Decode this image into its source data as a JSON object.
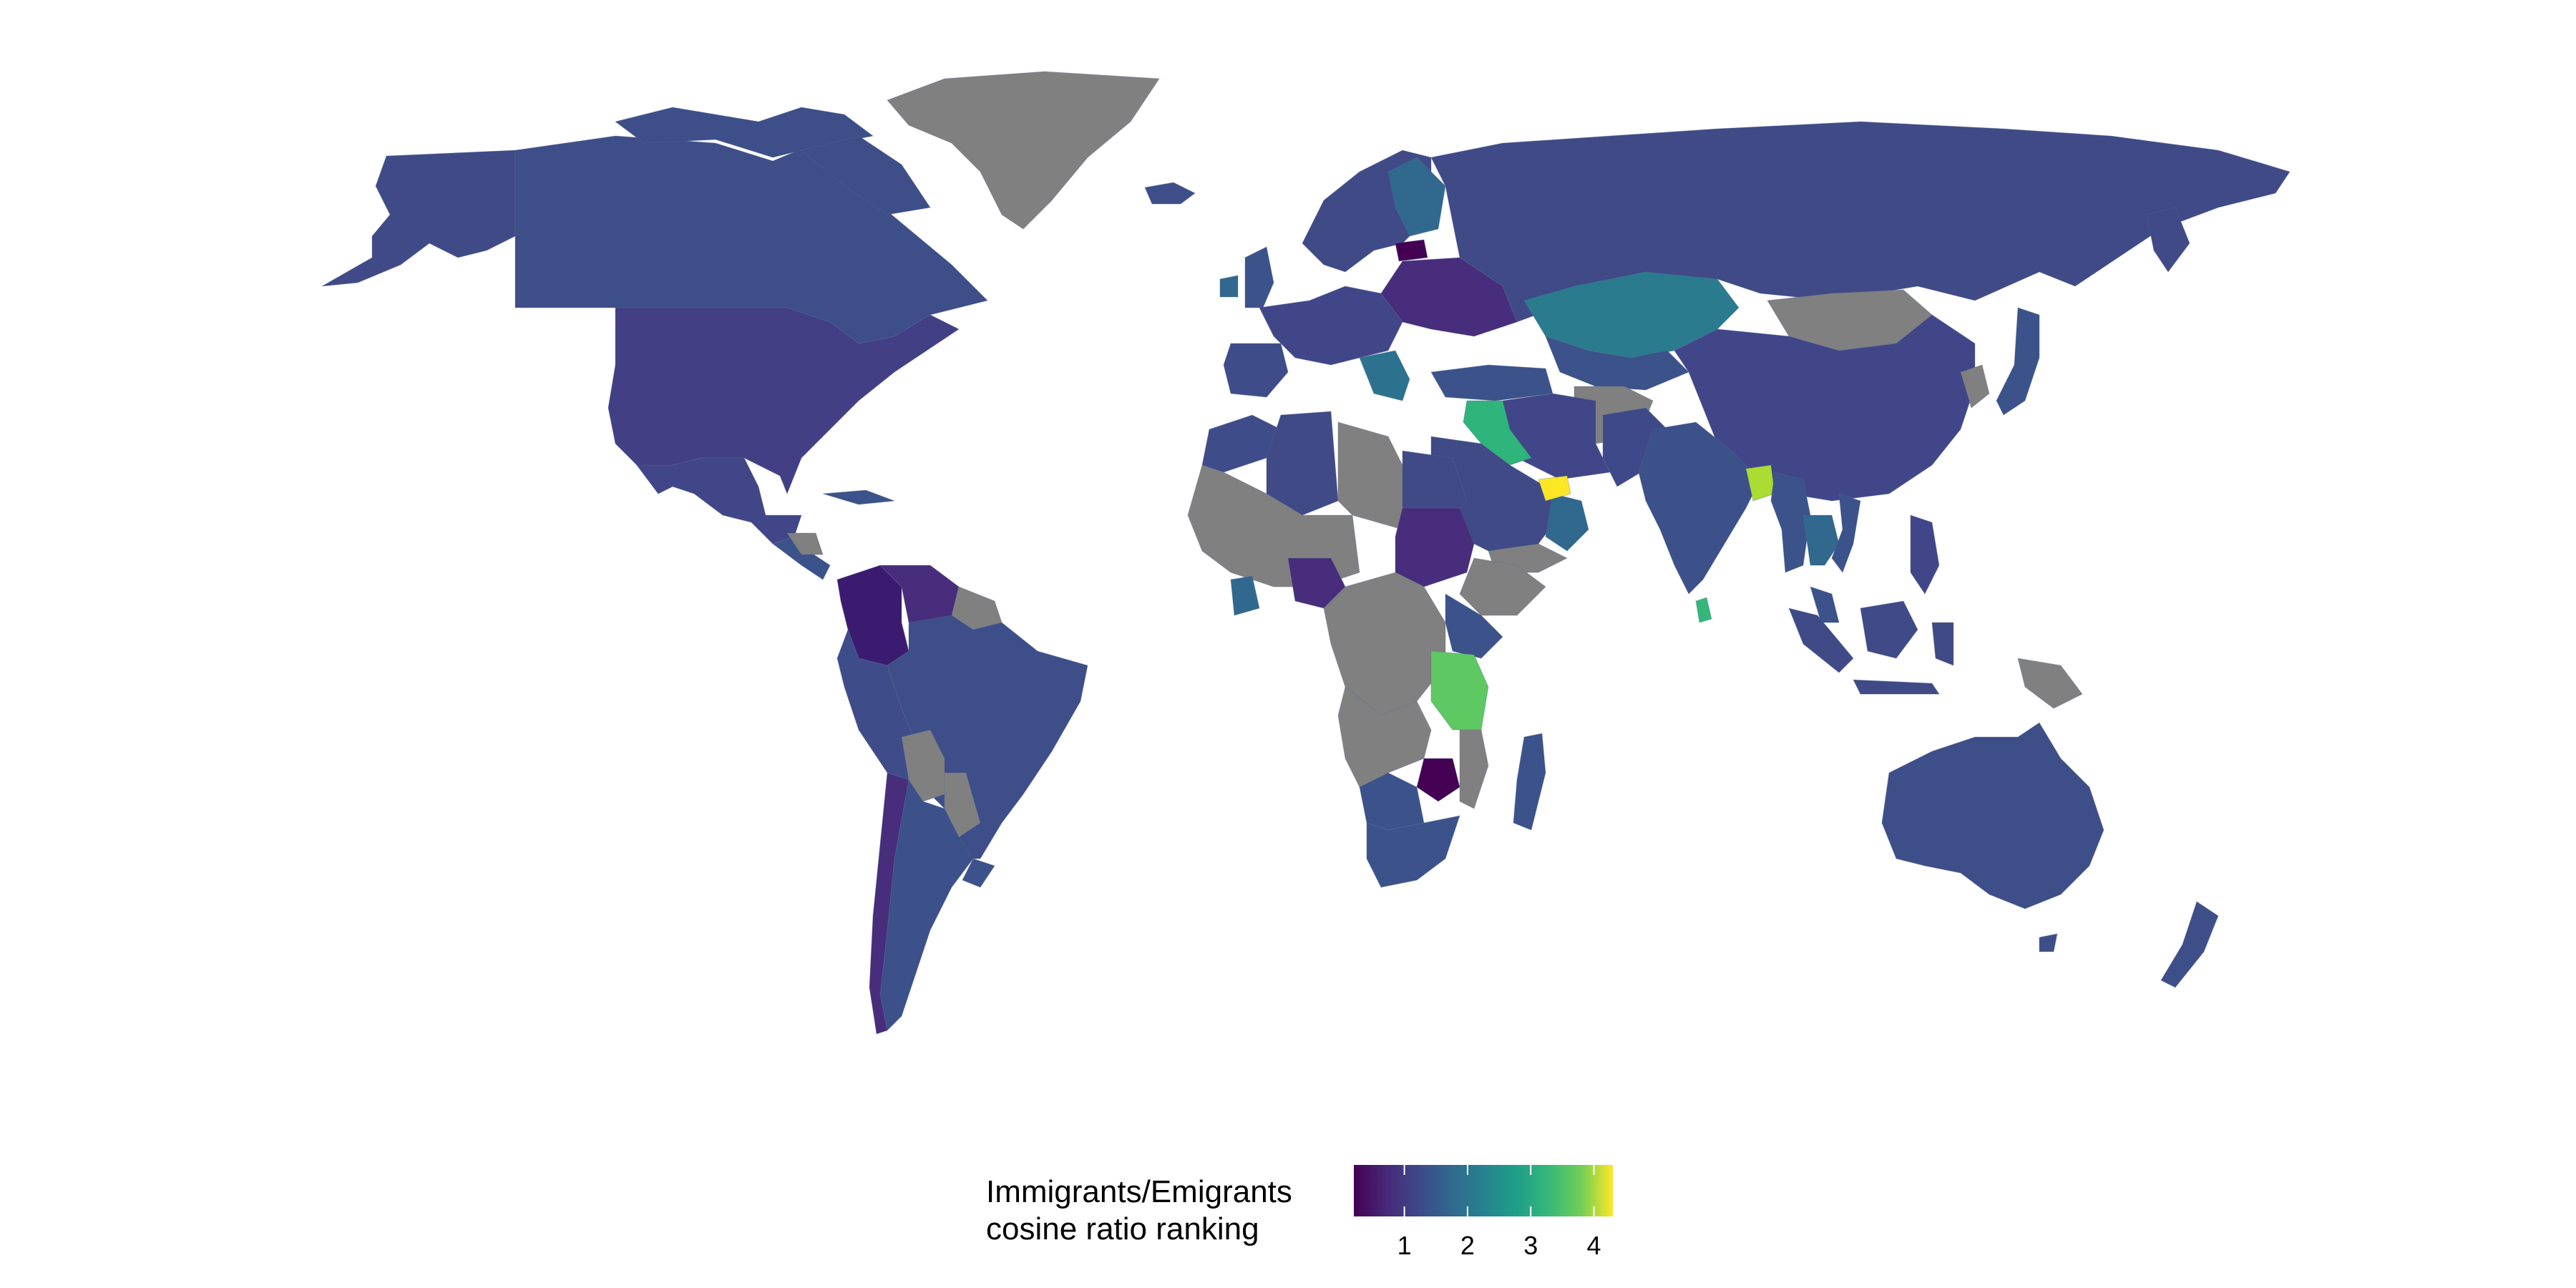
{
  "legend": {
    "title_line1": "Immigrants/Emigrants",
    "title_line2": "cosine ratio ranking",
    "domain": [
      0.2,
      4.3
    ],
    "ticks": [
      "1",
      "2",
      "3",
      "4"
    ],
    "tick_values": [
      1,
      2,
      3,
      4
    ]
  },
  "colors": {
    "no_data": "#808080",
    "c05": "#440154",
    "c1": "#472d7b",
    "c15": "#3b528b",
    "c2": "#2c728e",
    "c25": "#21918c",
    "c3": "#27ad81",
    "c35": "#5ec962",
    "c4": "#aadc32",
    "c43": "#fde725"
  },
  "chart_data": {
    "type": "choropleth",
    "scale": "viridis",
    "legend_placement": "bottom-center",
    "regions": [
      {
        "name": "Greenland",
        "value": null
      },
      {
        "name": "Canada",
        "value": 1.5
      },
      {
        "name": "United States",
        "value": 1.3
      },
      {
        "name": "Mexico",
        "value": 1.4
      },
      {
        "name": "Colombia",
        "value": 0.9
      },
      {
        "name": "Venezuela",
        "value": 1.0
      },
      {
        "name": "Brazil",
        "value": 1.5
      },
      {
        "name": "Bolivia",
        "value": null
      },
      {
        "name": "Argentina",
        "value": 1.6
      },
      {
        "name": "Chile",
        "value": 1.2
      },
      {
        "name": "Russia",
        "value": 1.4
      },
      {
        "name": "Kazakhstan",
        "value": 2.6
      },
      {
        "name": "Mongolia",
        "value": null
      },
      {
        "name": "China",
        "value": 1.4
      },
      {
        "name": "India",
        "value": 1.5
      },
      {
        "name": "Bangladesh",
        "value": 4.0
      },
      {
        "name": "Sri Lanka",
        "value": 3.2
      },
      {
        "name": "Iraq",
        "value": 3.0
      },
      {
        "name": "United Arab Emirates",
        "value": 4.3
      },
      {
        "name": "Tanzania",
        "value": 3.5
      },
      {
        "name": "Zimbabwe",
        "value": 0.5
      },
      {
        "name": "Sudan",
        "value": 1.1
      },
      {
        "name": "Egypt",
        "value": 1.3
      },
      {
        "name": "Australia",
        "value": 1.5
      },
      {
        "name": "Thailand",
        "value": 2.0
      }
    ]
  }
}
